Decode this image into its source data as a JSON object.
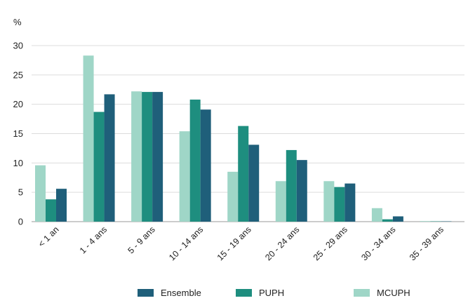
{
  "chart_data": {
    "type": "bar",
    "ylabel": "%",
    "ylim": [
      0,
      30
    ],
    "yticks": [
      0,
      5,
      10,
      15,
      20,
      25,
      30
    ],
    "grid": true,
    "legend_position": "bottom",
    "categories": [
      "< 1 an",
      "1 - 4 ans",
      "5 - 9 ans",
      "10 - 14 ans",
      "15 - 19 ans",
      "20 - 24 ans",
      "25 - 29 ans",
      "30 - 34 ans",
      "35 - 39 ans"
    ],
    "series": [
      {
        "name": "MCUPH",
        "color": "#9fd6c7",
        "values": [
          9.6,
          28.3,
          22.2,
          15.4,
          8.5,
          6.9,
          6.9,
          2.3,
          0.1
        ]
      },
      {
        "name": "PUPH",
        "color": "#1e8e7f",
        "values": [
          3.8,
          18.7,
          22.1,
          20.8,
          16.3,
          12.2,
          5.9,
          0.4,
          0.0
        ]
      },
      {
        "name": "Ensemble",
        "color": "#1f5f7a",
        "values": [
          5.6,
          21.7,
          22.1,
          19.1,
          13.1,
          10.5,
          6.5,
          0.9,
          0.0
        ]
      }
    ],
    "legend_order": [
      "Ensemble",
      "PUPH",
      "MCUPH"
    ]
  }
}
